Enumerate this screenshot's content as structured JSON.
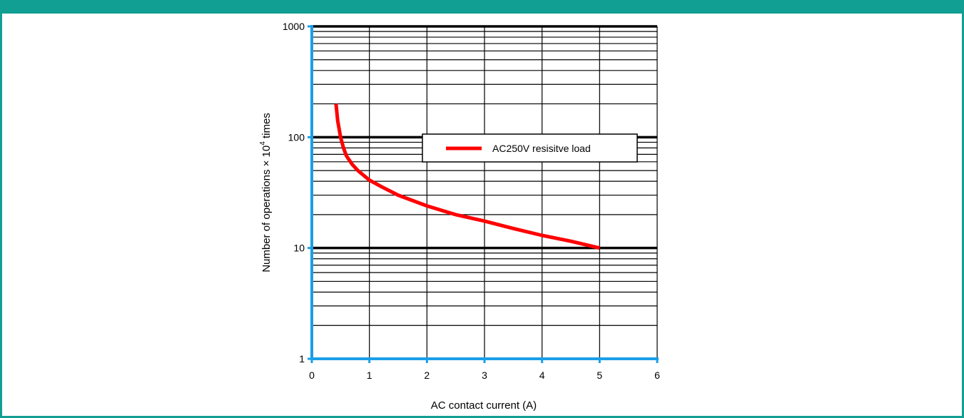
{
  "frame": {
    "accent_color": "#119e93"
  },
  "chart_data": {
    "type": "line",
    "xlabel": "AC contact current (A)",
    "ylabel_prefix": "Number of operations × 10",
    "ylabel_superscript": "4",
    "ylabel_suffix": " times",
    "xlim": [
      0,
      6
    ],
    "ylim": [
      1,
      1000
    ],
    "y_scale": "log",
    "grid": true,
    "x_ticks": [
      "0",
      "1",
      "2",
      "3",
      "4",
      "5",
      "6"
    ],
    "y_ticks": [
      "1",
      "10",
      "100",
      "1000"
    ],
    "legend": {
      "position": "center-right",
      "label": "AC250V resisitve load"
    },
    "series": [
      {
        "name": "AC250V resisitve load",
        "color": "#ff0000",
        "x": [
          0.42,
          0.45,
          0.5,
          0.55,
          0.6,
          0.7,
          0.8,
          1.0,
          1.2,
          1.5,
          2.0,
          2.5,
          3.0,
          3.5,
          4.0,
          4.5,
          5.0
        ],
        "y": [
          200,
          140,
          100,
          80,
          68,
          57,
          50,
          41,
          36,
          30,
          24,
          20,
          17.5,
          15,
          13,
          11.5,
          10
        ]
      }
    ],
    "axis_color": "#1a9fe8"
  }
}
